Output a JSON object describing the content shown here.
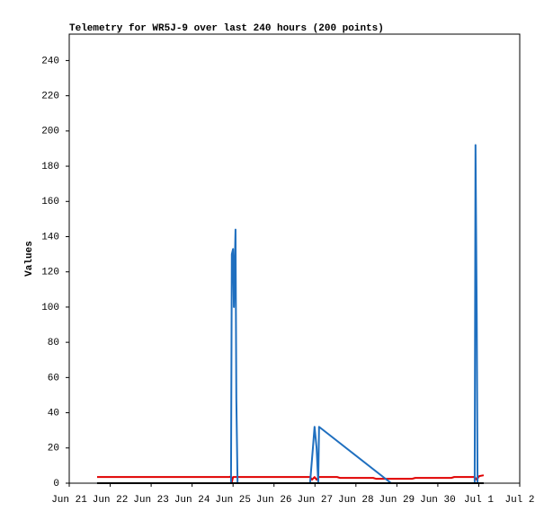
{
  "chart_data": {
    "type": "line",
    "title": "Telemetry for WR5J-9 over last 240 hours (200 points)",
    "y_label": "Values",
    "xlim": [
      0,
      11
    ],
    "ylim": [
      0,
      255
    ],
    "xticks": [
      {
        "value": 0,
        "label": "Jun 21"
      },
      {
        "value": 1,
        "label": "Jun 22"
      },
      {
        "value": 2,
        "label": "Jun 23"
      },
      {
        "value": 3,
        "label": "Jun 24"
      },
      {
        "value": 4,
        "label": "Jun 25"
      },
      {
        "value": 5,
        "label": "Jun 26"
      },
      {
        "value": 6,
        "label": "Jun 27"
      },
      {
        "value": 7,
        "label": "Jun 28"
      },
      {
        "value": 8,
        "label": "Jun 29"
      },
      {
        "value": 9,
        "label": "Jun 30"
      },
      {
        "value": 10,
        "label": "Jul 1"
      },
      {
        "value": 11,
        "label": "Jul 2"
      }
    ],
    "yticks": [
      0,
      20,
      40,
      60,
      80,
      100,
      120,
      140,
      160,
      180,
      200,
      220,
      240
    ],
    "series": [
      {
        "color": "#e00000",
        "x": [
          0.68,
          3.91,
          3.95,
          3.97,
          4.0,
          4.08,
          5.88,
          5.93,
          5.99,
          6.04,
          6.1,
          6.54,
          6.61,
          7.42,
          7.49,
          8.37,
          8.45,
          9.33,
          9.4,
          9.9,
          9.95,
          10.01,
          10.12
        ],
        "values": [
          3.5,
          3.5,
          3.8,
          0.5,
          3.5,
          3.5,
          3.5,
          2,
          3.5,
          2,
          3.5,
          3.5,
          3,
          3,
          2.5,
          2.5,
          3,
          3,
          3.5,
          3.5,
          2,
          4,
          4.5
        ]
      },
      {
        "color": "#1f6fbf",
        "x": [
          0.68,
          3.95,
          3.97,
          4.0,
          4.02,
          4.06,
          4.08,
          4.11,
          5.88,
          5.95,
          5.99,
          6.04,
          6.08,
          6.1,
          7.86,
          9.9,
          9.92,
          9.95,
          9.97,
          10.12
        ],
        "values": [
          0,
          0,
          130,
          133,
          100,
          144,
          48,
          0,
          0,
          20,
          32,
          20,
          0,
          32,
          0,
          0,
          192,
          96,
          0,
          0
        ]
      },
      {
        "color": "#000000",
        "x": [
          0.68,
          10.12
        ],
        "values": [
          0,
          0
        ]
      }
    ]
  }
}
